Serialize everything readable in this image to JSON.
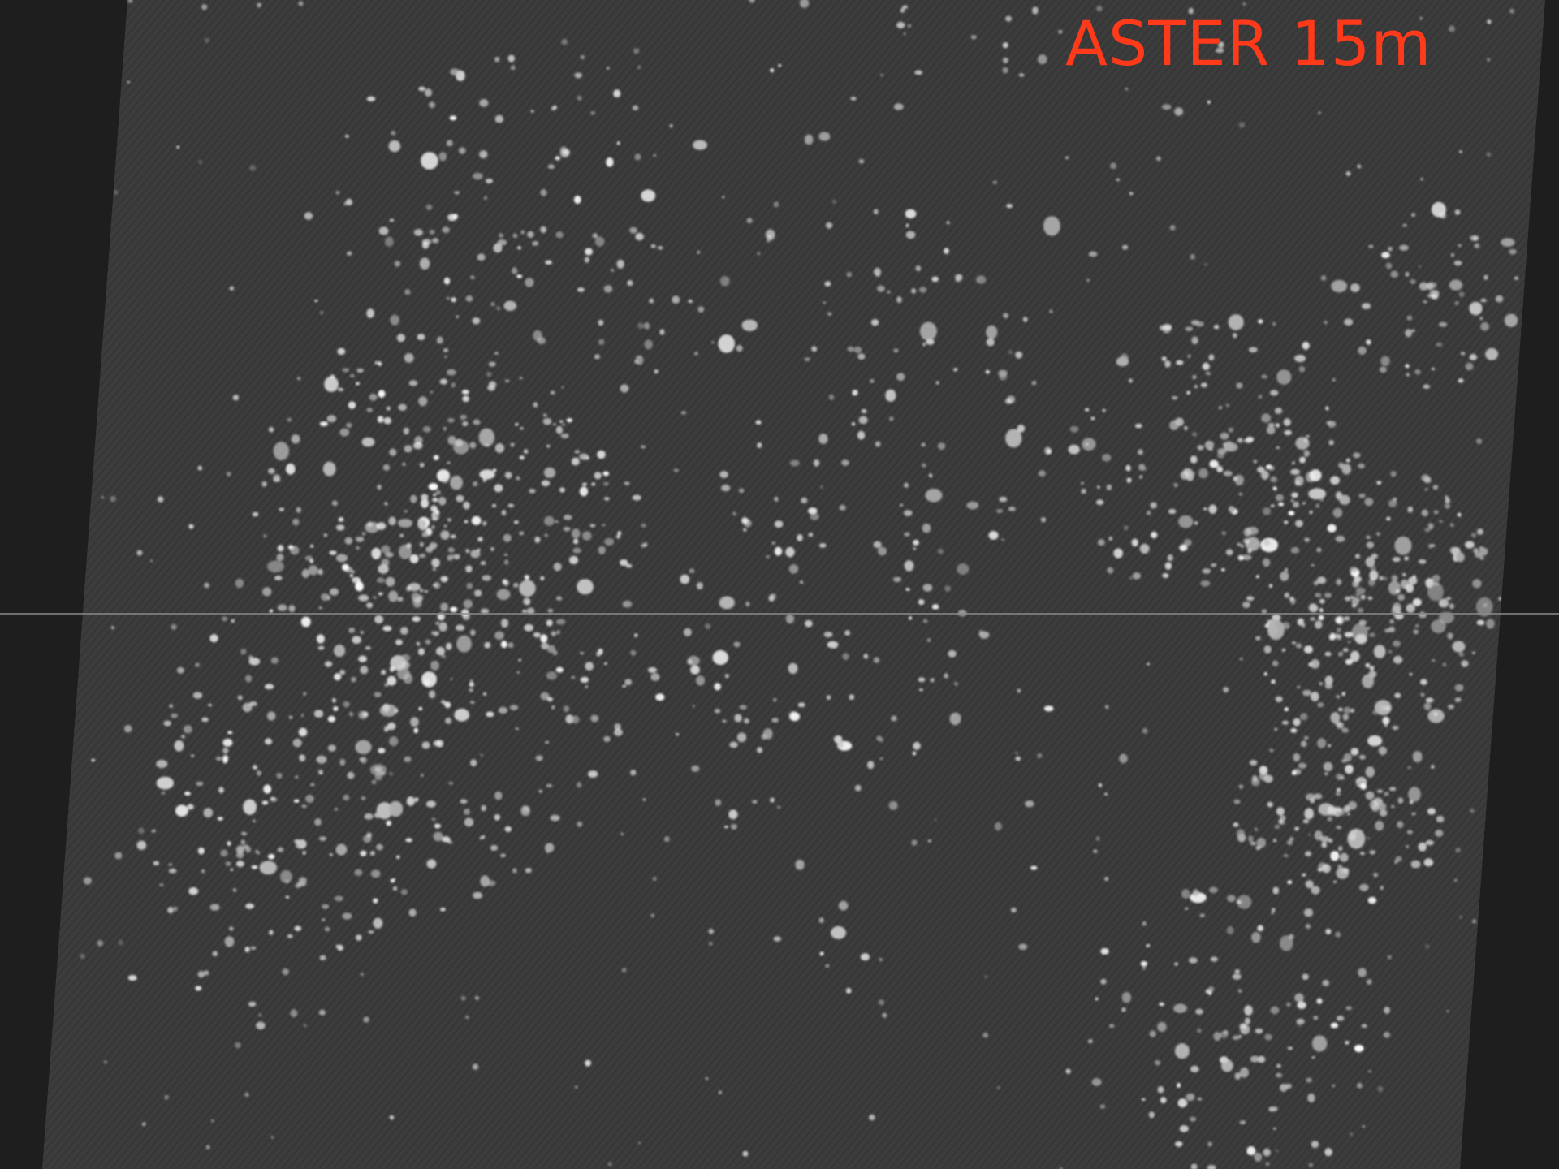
{
  "image": {
    "label": "ASTER 15m",
    "label_color": "#ff3a1a",
    "background_color": "#1e1e1e",
    "scene_color": "#3b3b3b",
    "highlight_color": "#ffffff"
  }
}
